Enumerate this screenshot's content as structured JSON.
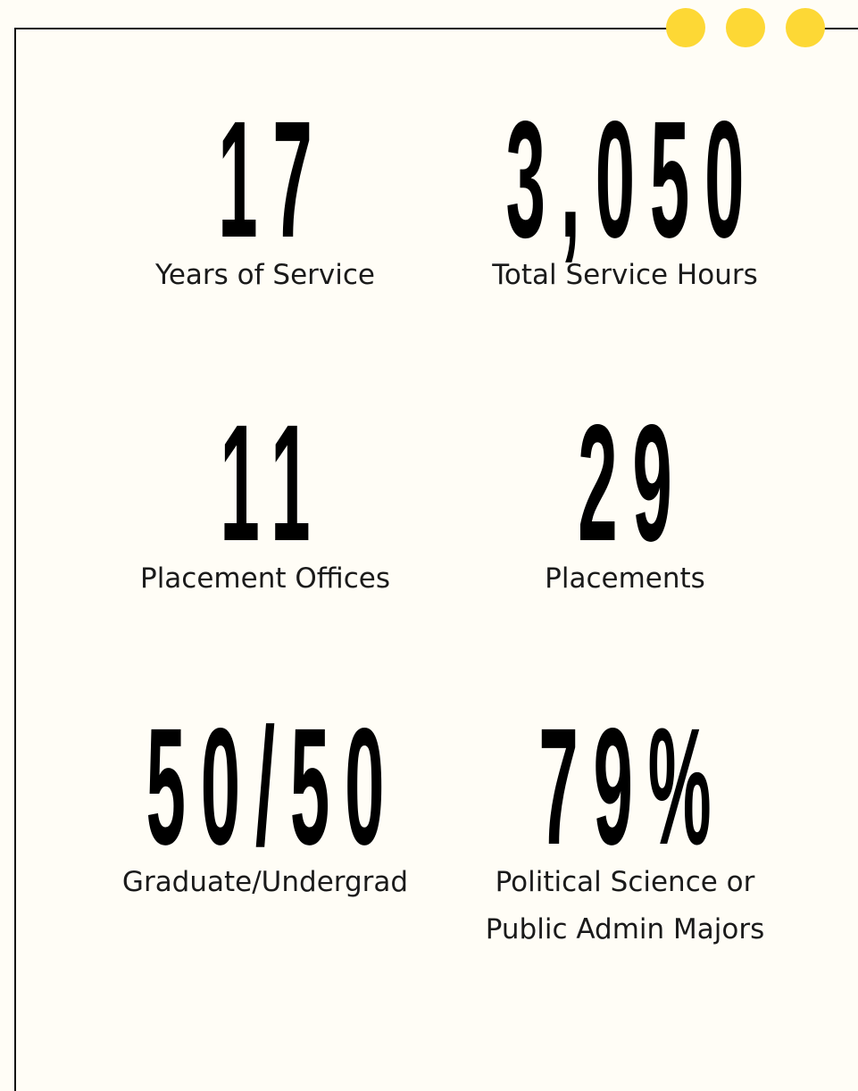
{
  "stats": [
    {
      "value": "17",
      "label": [
        "Years of Service"
      ]
    },
    {
      "value": "3,050",
      "label": [
        "Total Service Hours"
      ]
    },
    {
      "value": "11",
      "label": [
        "Placement Offices"
      ]
    },
    {
      "value": "29",
      "label": [
        "Placements"
      ]
    },
    {
      "value": "50/50",
      "label": [
        "Graduate/Undergrad"
      ]
    },
    {
      "value": "79%",
      "label": [
        "Political Science or",
        "Public Admin Majors"
      ]
    }
  ]
}
